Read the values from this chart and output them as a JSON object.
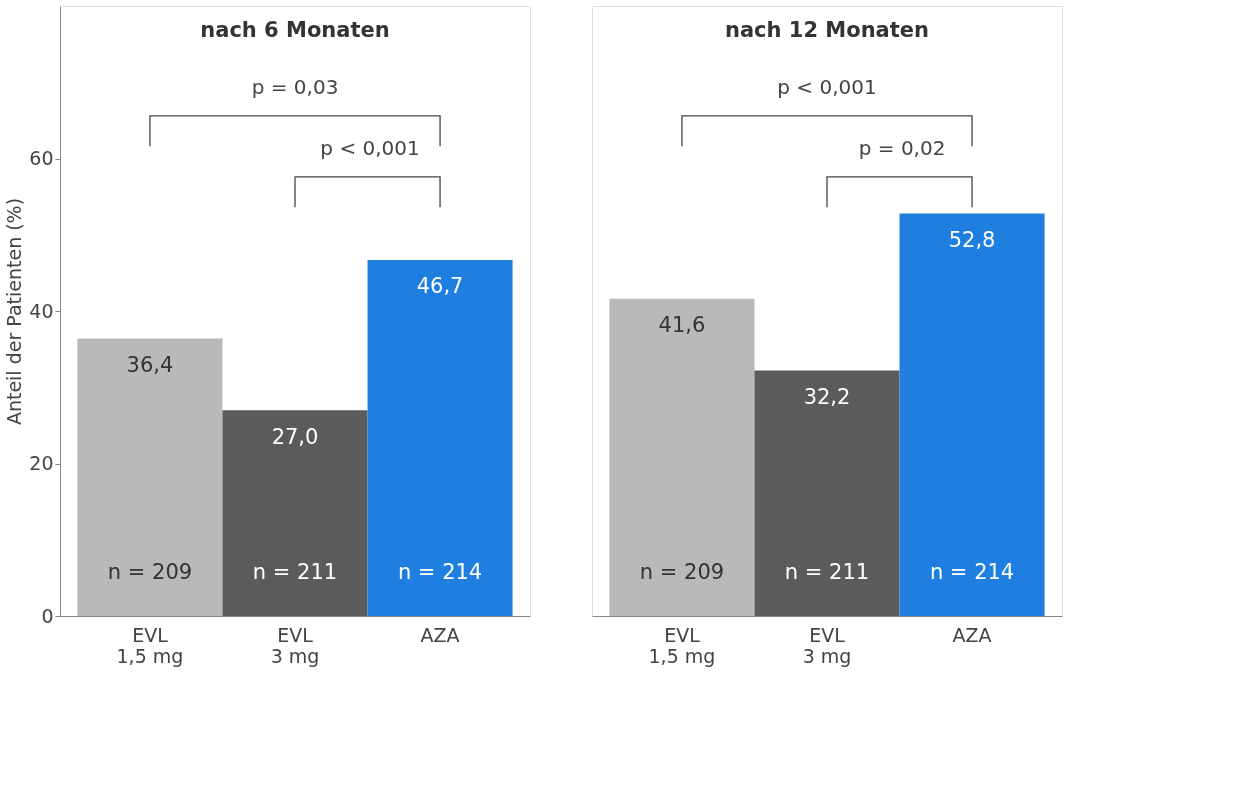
{
  "chart_data": [
    {
      "type": "bar",
      "title": "nach 6 Monaten",
      "ylabel": "Anteil der Patienten (%)",
      "categories": [
        "EVL\n1,5 mg",
        "EVL\n3 mg",
        "AZA"
      ],
      "values": [
        36.4,
        27.0,
        46.7
      ],
      "value_labels": [
        "36,4",
        "27,0",
        "46,7"
      ],
      "colors": [
        "#b9b9b9",
        "#5b5b5b",
        "#1f7fe0"
      ],
      "ylim": [
        0,
        80
      ],
      "yticks": [
        0,
        20,
        40,
        60
      ],
      "annotations": [
        "p = 0,03",
        "p < 0,001",
        "n = 209",
        "n = 211",
        "n = 214"
      ]
    },
    {
      "type": "bar",
      "title": "nach 12 Monaten",
      "categories": [
        "EVL\n1,5 mg",
        "EVL\n3 mg",
        "AZA"
      ],
      "values": [
        41.6,
        32.2,
        52.8
      ],
      "value_labels": [
        "41,6",
        "32,2",
        "52,8"
      ],
      "colors": [
        "#b9b9b9",
        "#5b5b5b",
        "#1f7fe0"
      ],
      "ylim": [
        0,
        80
      ],
      "yticks": [
        0,
        20,
        40,
        60
      ],
      "tick_labels": "x",
      "annotations": [
        "p < 0,001",
        "p = 0,02",
        "n = 209",
        "n = 211",
        "n = 214"
      ]
    }
  ]
}
